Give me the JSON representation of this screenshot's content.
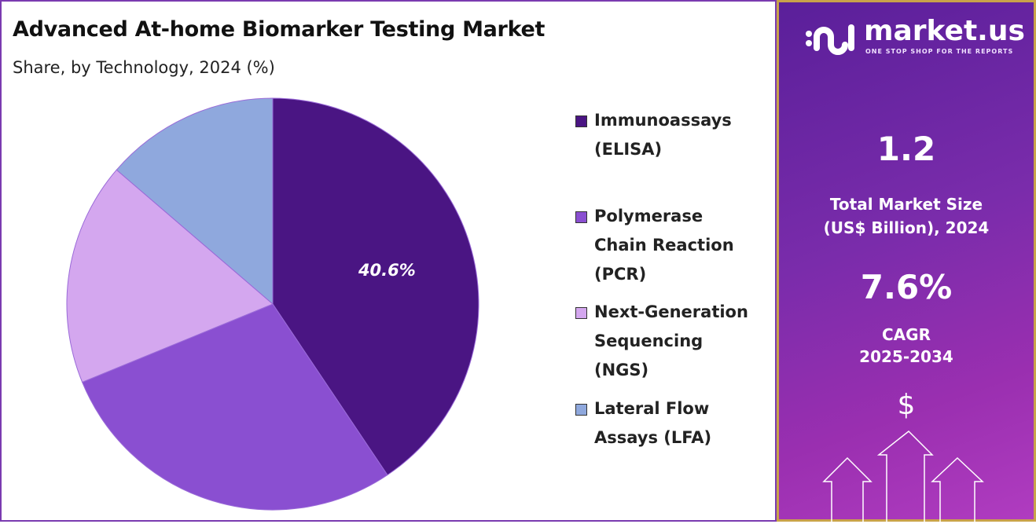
{
  "title": "Advanced At-home Biomarker Testing Market",
  "subtitle": "Share, by Technology, 2024 (%)",
  "chart_data": {
    "type": "pie",
    "title": "Advanced At-home Biomarker Testing Market",
    "subtitle": "Share, by Technology, 2024 (%)",
    "categories": [
      "Immunoassays (ELISA)",
      "Polymerase Chain Reaction (PCR)",
      "Next-Generation Sequencing (NGS)",
      "Lateral Flow Assays (LFA)"
    ],
    "values": [
      40.6,
      28.2,
      17.5,
      13.7
    ],
    "colors": [
      "#4a1583",
      "#8a4fd1",
      "#d4a7ef",
      "#8fa8dd"
    ],
    "data_labels": [
      "40.6%",
      "",
      "",
      ""
    ],
    "legend_placement": "right",
    "start": "top",
    "direction": "clockwise"
  },
  "legend": [
    {
      "lines": [
        "Immunoassays",
        "(ELISA)"
      ]
    },
    {
      "lines": [
        "Polymerase",
        "Chain Reaction",
        "(PCR)"
      ]
    },
    {
      "lines": [
        "Next-Generation",
        "Sequencing",
        "(NGS)"
      ]
    },
    {
      "lines": [
        "Lateral Flow",
        "Assays (LFA)"
      ]
    }
  ],
  "panel": {
    "logo": "market.us",
    "tagline": "ONE STOP SHOP FOR THE REPORTS",
    "market_size": "1.2",
    "market_size_label_1": "Total Market Size",
    "market_size_label_2": "(US$ Billion), 2024",
    "cagr": "7.6%",
    "cagr_label_1": "CAGR",
    "cagr_label_2": "2025-2034",
    "dollar": "$"
  }
}
